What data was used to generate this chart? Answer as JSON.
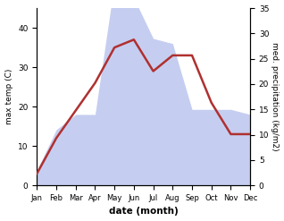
{
  "months": [
    "Jan",
    "Feb",
    "Mar",
    "Apr",
    "May",
    "Jun",
    "Jul",
    "Aug",
    "Sep",
    "Oct",
    "Nov",
    "Dec"
  ],
  "temperature": [
    3,
    12,
    19,
    26,
    35,
    37,
    29,
    33,
    33,
    21,
    13,
    13
  ],
  "precipitation": [
    3,
    11,
    14,
    14,
    40,
    37,
    29,
    28,
    15,
    15,
    15,
    14
  ],
  "temp_color": "#b03030",
  "precip_fill_color": "#c5cef0",
  "xlabel": "date (month)",
  "ylabel_left": "max temp (C)",
  "ylabel_right": "med. precipitation (kg/m2)",
  "ylim_left": [
    0,
    45
  ],
  "ylim_right": [
    0,
    35
  ],
  "yticks_left": [
    0,
    10,
    20,
    30,
    40
  ],
  "yticks_right": [
    0,
    5,
    10,
    15,
    20,
    25,
    30,
    35
  ],
  "temp_linewidth": 1.8
}
